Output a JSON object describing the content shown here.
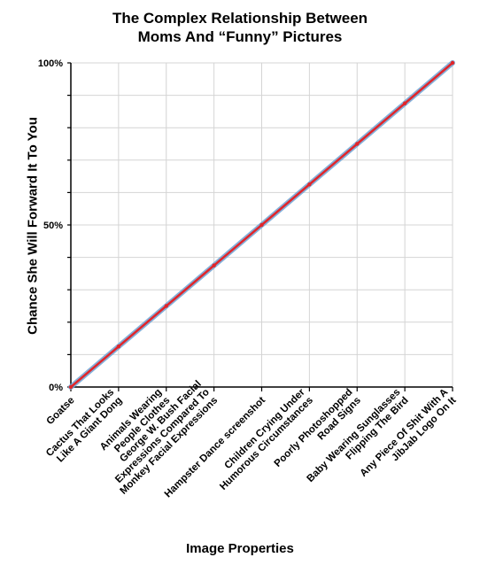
{
  "chart_data": {
    "type": "line",
    "title_lines": [
      "The Complex Relationship Between",
      "Moms And “Funny” Pictures"
    ],
    "xlabel": "Image Properties",
    "ylabel": "Chance She Will Forward It To You",
    "categories": [
      [
        "Goatse"
      ],
      [
        "Cactus That Looks",
        "Like A Giant Dong"
      ],
      [
        "Animals Wearing",
        "People Clothes"
      ],
      [
        "George W. Bush Facial",
        "Expressions Compared To",
        "Monkey Facial Expressions"
      ],
      [
        "Hampster Dance screenshot"
      ],
      [
        "Children Crying Under",
        "Humorous Circumstances"
      ],
      [
        "Poorly Photoshopped",
        "Road Signs"
      ],
      [
        "Baby Wearing Sunglasses",
        "Flipping The Bird"
      ],
      [
        "Any Piece Of Shit With A",
        "JibJab Logo On It"
      ]
    ],
    "y_tick_labels": [
      "0%",
      "50%",
      "100%"
    ],
    "ylim": [
      0,
      100
    ],
    "grid": true,
    "series": [
      {
        "values": [
          0,
          12.5,
          25,
          37.5,
          50,
          62.5,
          75,
          87.5,
          100
        ]
      }
    ],
    "colors": {
      "line": "#e0262b",
      "line_halo": "#6fa3d4",
      "grid": "#d4d4d4",
      "axis": "#000000"
    }
  }
}
